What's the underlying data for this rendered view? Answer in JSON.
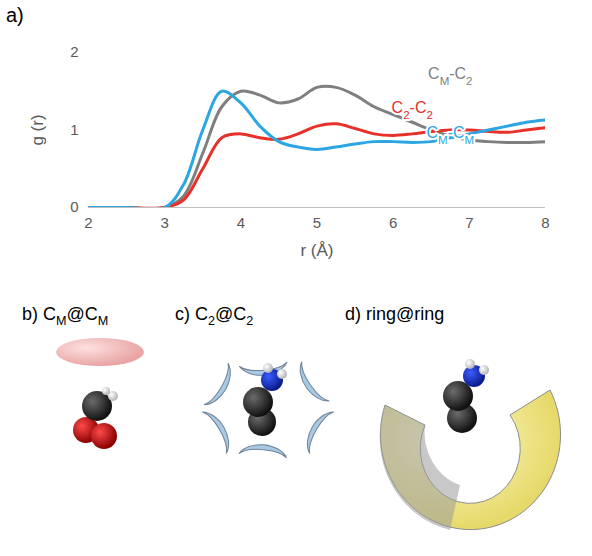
{
  "chart_data": {
    "type": "line",
    "xlabel": "r (Å)",
    "ylabel": "g (r)",
    "x": [
      2,
      2.5,
      3,
      3.25,
      3.5,
      3.75,
      4,
      4.25,
      4.5,
      4.75,
      5,
      5.25,
      5.5,
      5.75,
      6,
      6.25,
      6.5,
      6.75,
      7,
      7.25,
      7.5,
      7.75,
      8
    ],
    "xlim": [
      2,
      8
    ],
    "xticks": [
      2,
      3,
      4,
      5,
      6,
      7,
      8
    ],
    "ylim": [
      0,
      2
    ],
    "yticks": [
      0,
      1,
      2
    ],
    "series": [
      {
        "name": "CM-C2",
        "color": "#7f7f7f",
        "label_xy": [
          6.75,
          1.72
        ],
        "values": [
          0,
          0,
          0,
          0.15,
          0.7,
          1.3,
          1.5,
          1.45,
          1.35,
          1.4,
          1.55,
          1.55,
          1.45,
          1.3,
          1.2,
          1.1,
          1.0,
          0.92,
          0.87,
          0.85,
          0.84,
          0.84,
          0.85
        ]
      },
      {
        "name": "C2-C2",
        "color": "#e8302a",
        "label_xy": [
          6.25,
          1.28
        ],
        "values": [
          0,
          0,
          0,
          0.1,
          0.5,
          0.9,
          0.95,
          0.9,
          0.88,
          0.95,
          1.05,
          1.08,
          1.02,
          0.95,
          0.93,
          0.95,
          0.98,
          1.0,
          1.0,
          0.98,
          0.97,
          1.0,
          1.03
        ]
      },
      {
        "name": "CM-CM",
        "color": "#2ba6e3",
        "label_xy": [
          6.75,
          0.96
        ],
        "values": [
          0,
          0,
          0,
          0.3,
          1.0,
          1.5,
          1.35,
          1.05,
          0.85,
          0.78,
          0.75,
          0.78,
          0.82,
          0.85,
          0.85,
          0.84,
          0.85,
          0.9,
          0.95,
          1.0,
          1.05,
          1.1,
          1.13
        ]
      }
    ]
  },
  "panels": [
    {
      "label": "a)"
    },
    {
      "label": "b)",
      "title": "CM@CM"
    },
    {
      "label": "c)",
      "title": "C2@C2"
    },
    {
      "label": "d)",
      "title": "ring@ring"
    }
  ]
}
